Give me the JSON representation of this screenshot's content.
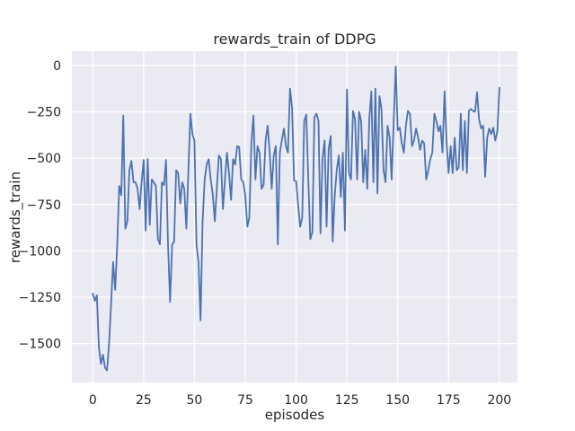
{
  "chart_data": {
    "type": "line",
    "title": "rewards_train of DDPG",
    "xlabel": "episodes",
    "ylabel": "rewards_train",
    "legend": null,
    "grid": true,
    "x_start": 0,
    "x_step": 1,
    "xticks": [
      0,
      25,
      50,
      75,
      100,
      125,
      150,
      175,
      200
    ],
    "yticks": [
      {
        "v": 0,
        "label": "0"
      },
      {
        "v": -250,
        "label": "−250"
      },
      {
        "v": -500,
        "label": "−500"
      },
      {
        "v": -750,
        "label": "−750"
      },
      {
        "v": -1000,
        "label": "−1000"
      },
      {
        "v": -1250,
        "label": "−1250"
      },
      {
        "v": -1500,
        "label": "−1500"
      }
    ],
    "xlim": [
      -10.3,
      208.9
    ],
    "ylim": [
      -1710,
      77
    ],
    "series": [
      {
        "name": "rewards_train",
        "values": [
          -1230,
          -1270,
          -1240,
          -1520,
          -1610,
          -1560,
          -1630,
          -1645,
          -1500,
          -1280,
          -1060,
          -1210,
          -965,
          -650,
          -700,
          -270,
          -880,
          -840,
          -565,
          -515,
          -630,
          -630,
          -665,
          -775,
          -630,
          -510,
          -890,
          -505,
          -860,
          -615,
          -630,
          -650,
          -935,
          -965,
          -630,
          -645,
          -510,
          -965,
          -1275,
          -965,
          -950,
          -565,
          -580,
          -745,
          -630,
          -665,
          -880,
          -565,
          -260,
          -370,
          -405,
          -965,
          -1065,
          -1375,
          -840,
          -615,
          -535,
          -505,
          -615,
          -695,
          -840,
          -665,
          -485,
          -505,
          -775,
          -615,
          -470,
          -580,
          -725,
          -505,
          -535,
          -435,
          -440,
          -615,
          -630,
          -700,
          -870,
          -820,
          -420,
          -270,
          -615,
          -435,
          -470,
          -665,
          -645,
          -405,
          -325,
          -470,
          -665,
          -485,
          -435,
          -965,
          -470,
          -405,
          -340,
          -435,
          -470,
          -125,
          -230,
          -620,
          -625,
          -750,
          -870,
          -820,
          -300,
          -265,
          -620,
          -937,
          -900,
          -280,
          -260,
          -300,
          -905,
          -500,
          -405,
          -870,
          -450,
          -380,
          -950,
          -700,
          -565,
          -485,
          -710,
          -470,
          -890,
          -130,
          -580,
          -615,
          -245,
          -290,
          -615,
          -250,
          -300,
          -630,
          -455,
          -665,
          -290,
          -140,
          -630,
          -125,
          -690,
          -165,
          -235,
          -565,
          -630,
          -325,
          -390,
          -615,
          -300,
          -5,
          -350,
          -335,
          -420,
          -470,
          -325,
          -245,
          -260,
          -435,
          -405,
          -340,
          -390,
          -455,
          -405,
          -420,
          -615,
          -565,
          -505,
          -470,
          -260,
          -300,
          -355,
          -325,
          -470,
          -140,
          -405,
          -580,
          -435,
          -580,
          -390,
          -565,
          -550,
          -260,
          -565,
          -300,
          -580,
          -245,
          -235,
          -245,
          -250,
          -145,
          -290,
          -340,
          -325,
          -600,
          -390,
          -340,
          -370,
          -335,
          -405,
          -355,
          -120
        ]
      }
    ],
    "colors": {
      "line": "#4c72b0",
      "plot_bg": "#eaeaf2",
      "grid": "#ffffff",
      "text": "#262626",
      "figure_bg": "#ffffff"
    }
  }
}
